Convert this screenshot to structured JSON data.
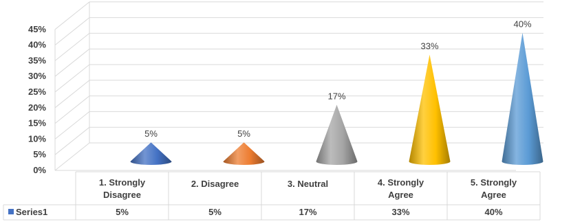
{
  "chart_data": {
    "type": "bar",
    "subtype": "3d-cone",
    "title": "",
    "xlabel": "",
    "ylabel": "",
    "categories": [
      "1. Strongly Disagree",
      "2. Disagree",
      "3. Neutral",
      "4. Strongly Agree",
      "5. Strongly Agree"
    ],
    "series": [
      {
        "name": "Series1",
        "values": [
          5,
          5,
          17,
          33,
          40
        ],
        "labels": [
          "5%",
          "5%",
          "17%",
          "33%",
          "40%"
        ],
        "point_colors": [
          "#4472c4",
          "#ed7d31",
          "#a5a5a5",
          "#ffc000",
          "#5b9bd5"
        ],
        "legend_color": "#4472c4"
      }
    ],
    "ylim": [
      0,
      45
    ],
    "yticks": [
      0,
      5,
      10,
      15,
      20,
      25,
      30,
      35,
      40,
      45
    ],
    "ytick_labels": [
      "0%",
      "5%",
      "10%",
      "15%",
      "20%",
      "25%",
      "30%",
      "35%",
      "40%",
      "45%"
    ],
    "grid": true,
    "legend": "data-table",
    "data_table": true
  }
}
